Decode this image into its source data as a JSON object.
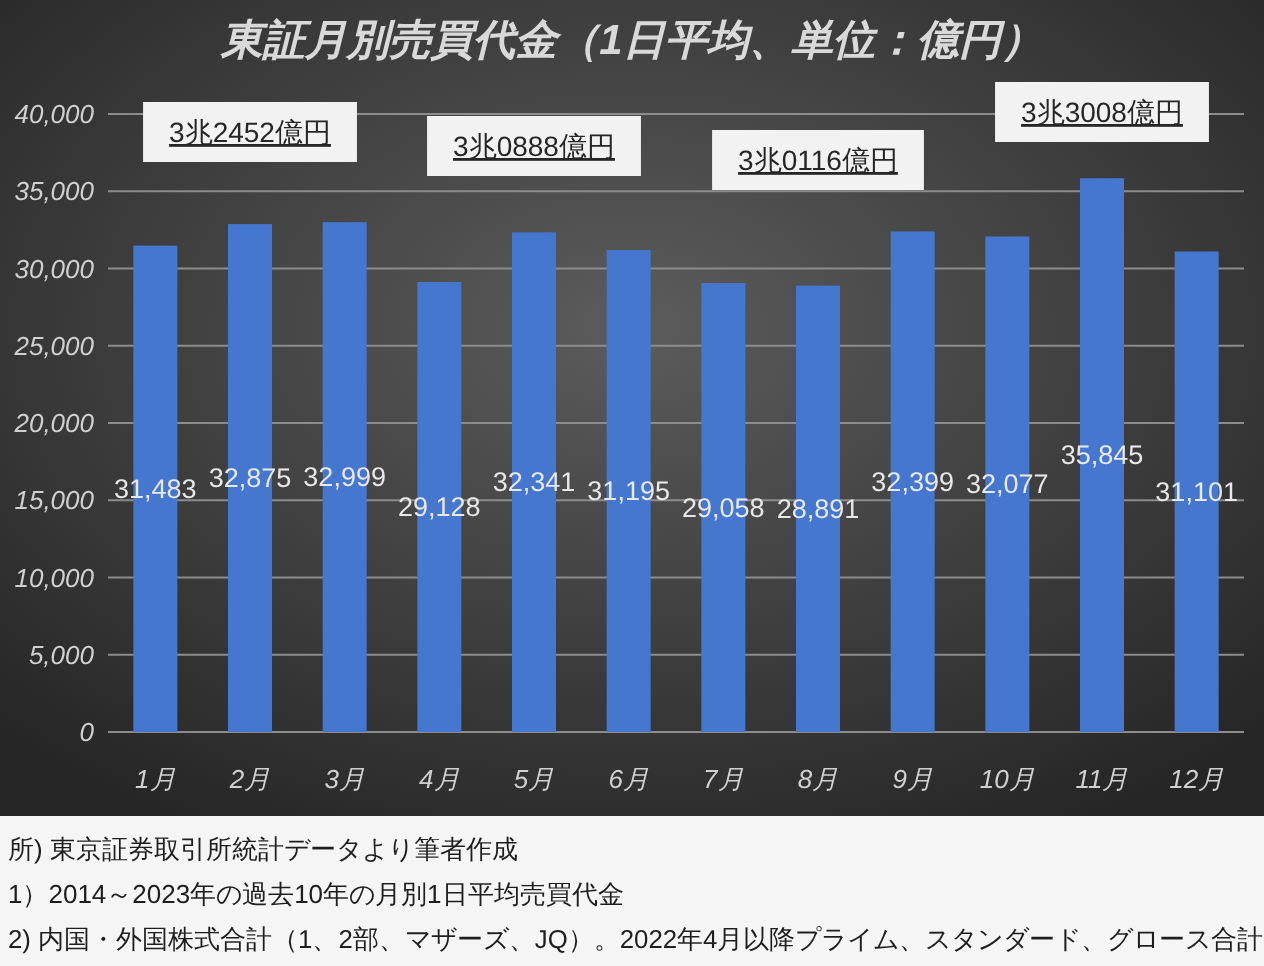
{
  "chart_data": {
    "type": "bar",
    "title": "東証月別売買代金（1日平均、単位：億円）",
    "categories": [
      "1月",
      "2月",
      "3月",
      "4月",
      "5月",
      "6月",
      "7月",
      "8月",
      "9月",
      "10月",
      "11月",
      "12月"
    ],
    "values": [
      31483,
      32875,
      32999,
      29128,
      32341,
      31195,
      29058,
      28891,
      32399,
      32077,
      35845,
      31101
    ],
    "value_labels": [
      "31,483",
      "32,875",
      "32,999",
      "29,128",
      "32,341",
      "31,195",
      "29,058",
      "28,891",
      "32,399",
      "32,077",
      "35,845",
      "31,101"
    ],
    "color": "#4677cf",
    "ylim": [
      0,
      40000
    ],
    "yticks": [
      0,
      {
        "value": 5000,
        "label": "5,000"
      },
      {
        "value": 10000,
        "label": "10,000"
      },
      {
        "value": 15000,
        "label": "15,000"
      },
      {
        "value": 20000,
        "label": "20,000"
      },
      {
        "value": 25000,
        "label": "25,000"
      },
      {
        "value": 30000,
        "label": "30,000"
      },
      {
        "value": 35000,
        "label": "35,000"
      },
      {
        "value": 40000,
        "label": "40,000"
      }
    ],
    "grid": "y",
    "annotations": [
      "3兆2452億円",
      "3兆0888億円",
      "3兆0116億円",
      "3兆3008億円",
      "所) 東京証券取引所統計データより筆者作成",
      "1）2014～2023年の過去10年の月別1日平均売買代金",
      "2) 内国・外国株式合計（1、2部、マザーズ、JQ）。2022年4月以降プライム、スタンダード、グロース合計"
    ]
  }
}
